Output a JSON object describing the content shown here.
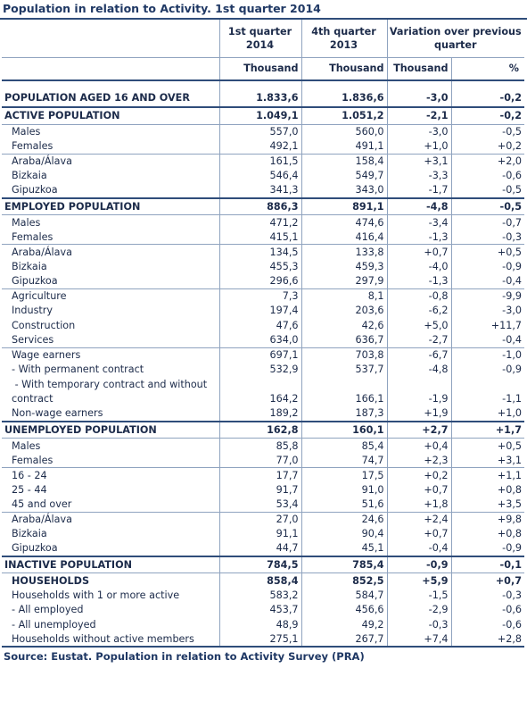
{
  "title": "Population in relation to Activity. 1st quarter 2014",
  "header": {
    "col1": "1st quarter 2014",
    "col2": "4th quarter 2013",
    "col3": "Variation over previous quarter",
    "unit1": "Thousand",
    "unit2": "Thousand",
    "unit3": "Thousand",
    "unit4": "%"
  },
  "rows": [
    {
      "label": "POPULATION AGED 16 AND OVER",
      "q1": "1.833,6",
      "q4": "1.836,6",
      "var": "-3,0",
      "pct": "-0,2"
    },
    {
      "label": "ACTIVE POPULATION",
      "q1": "1.049,1",
      "q4": "1.051,2",
      "var": "-2,1",
      "pct": "-0,2"
    },
    {
      "label": "Males",
      "q1": "557,0",
      "q4": "560,0",
      "var": "-3,0",
      "pct": "-0,5"
    },
    {
      "label": "Females",
      "q1": "492,1",
      "q4": "491,1",
      "var": "+1,0",
      "pct": "+0,2"
    },
    {
      "label": "Araba/Álava",
      "q1": "161,5",
      "q4": "158,4",
      "var": "+3,1",
      "pct": "+2,0"
    },
    {
      "label": "Bizkaia",
      "q1": "546,4",
      "q4": "549,7",
      "var": "-3,3",
      "pct": "-0,6"
    },
    {
      "label": "Gipuzkoa",
      "q1": "341,3",
      "q4": "343,0",
      "var": "-1,7",
      "pct": "-0,5"
    },
    {
      "label": "EMPLOYED POPULATION",
      "q1": "886,3",
      "q4": "891,1",
      "var": "-4,8",
      "pct": "-0,5"
    },
    {
      "label": "Males",
      "q1": "471,2",
      "q4": "474,6",
      "var": "-3,4",
      "pct": "-0,7"
    },
    {
      "label": "Females",
      "q1": "415,1",
      "q4": "416,4",
      "var": "-1,3",
      "pct": "-0,3"
    },
    {
      "label": "Araba/Álava",
      "q1": "134,5",
      "q4": "133,8",
      "var": "+0,7",
      "pct": "+0,5"
    },
    {
      "label": "Bizkaia",
      "q1": "455,3",
      "q4": "459,3",
      "var": "-4,0",
      "pct": "-0,9"
    },
    {
      "label": "Gipuzkoa",
      "q1": "296,6",
      "q4": "297,9",
      "var": "-1,3",
      "pct": "-0,4"
    },
    {
      "label": "Agriculture",
      "q1": "7,3",
      "q4": "8,1",
      "var": "-0,8",
      "pct": "-9,9"
    },
    {
      "label": "Industry",
      "q1": "197,4",
      "q4": "203,6",
      "var": "-6,2",
      "pct": "-3,0"
    },
    {
      "label": "Construction",
      "q1": "47,6",
      "q4": "42,6",
      "var": "+5,0",
      "pct": "+11,7"
    },
    {
      "label": "Services",
      "q1": "634,0",
      "q4": "636,7",
      "var": "-2,7",
      "pct": "-0,4"
    },
    {
      "label": "Wage earners",
      "q1": "697,1",
      "q4": "703,8",
      "var": "-6,7",
      "pct": "-1,0"
    },
    {
      "label": "- With permanent contract",
      "q1": "532,9",
      "q4": "537,7",
      "var": "-4,8",
      "pct": "-0,9"
    },
    {
      "label": " - With temporary contract and without contract",
      "q1": "164,2",
      "q4": "166,1",
      "var": "-1,9",
      "pct": "-1,1"
    },
    {
      "label": "Non-wage earners",
      "q1": "189,2",
      "q4": "187,3",
      "var": "+1,9",
      "pct": "+1,0"
    },
    {
      "label": "UNEMPLOYED POPULATION",
      "q1": "162,8",
      "q4": "160,1",
      "var": "+2,7",
      "pct": "+1,7"
    },
    {
      "label": "Males",
      "q1": "85,8",
      "q4": "85,4",
      "var": "+0,4",
      "pct": "+0,5"
    },
    {
      "label": "Females",
      "q1": "77,0",
      "q4": "74,7",
      "var": "+2,3",
      "pct": "+3,1"
    },
    {
      "label": "16 - 24",
      "q1": "17,7",
      "q4": "17,5",
      "var": "+0,2",
      "pct": "+1,1"
    },
    {
      "label": "25 - 44",
      "q1": "91,7",
      "q4": "91,0",
      "var": "+0,7",
      "pct": "+0,8"
    },
    {
      "label": "45 and over",
      "q1": "53,4",
      "q4": "51,6",
      "var": "+1,8",
      "pct": "+3,5"
    },
    {
      "label": "Araba/Álava",
      "q1": "27,0",
      "q4": "24,6",
      "var": "+2,4",
      "pct": "+9,8"
    },
    {
      "label": "Bizkaia",
      "q1": "91,1",
      "q4": "90,4",
      "var": "+0,7",
      "pct": "+0,8"
    },
    {
      "label": "Gipuzkoa",
      "q1": "44,7",
      "q4": "45,1",
      "var": "-0,4",
      "pct": "-0,9"
    },
    {
      "label": "INACTIVE POPULATION",
      "q1": "784,5",
      "q4": "785,4",
      "var": "-0,9",
      "pct": "-0,1"
    },
    {
      "label": "HOUSEHOLDS",
      "q1": "858,4",
      "q4": "852,5",
      "var": "+5,9",
      "pct": "+0,7"
    },
    {
      "label": "Households with 1 or more active",
      "q1": "583,2",
      "q4": "584,7",
      "var": "-1,5",
      "pct": "-0,3"
    },
    {
      "label": "- All employed",
      "q1": "453,7",
      "q4": "456,6",
      "var": "-2,9",
      "pct": "-0,6"
    },
    {
      "label": "- All unemployed",
      "q1": "48,9",
      "q4": "49,2",
      "var": "-0,3",
      "pct": "-0,6"
    },
    {
      "label": "Households without active members",
      "q1": "275,1",
      "q4": "267,7",
      "var": "+7,4",
      "pct": "+2,8"
    }
  ],
  "source": "Source: Eustat. Population in relation to Activity Survey (PRA)"
}
